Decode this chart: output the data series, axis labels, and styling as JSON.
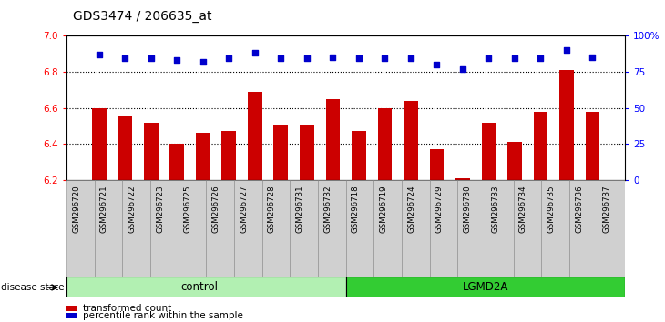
{
  "title": "GDS3474 / 206635_at",
  "samples": [
    "GSM296720",
    "GSM296721",
    "GSM296722",
    "GSM296723",
    "GSM296725",
    "GSM296726",
    "GSM296727",
    "GSM296728",
    "GSM296731",
    "GSM296732",
    "GSM296718",
    "GSM296719",
    "GSM296724",
    "GSM296729",
    "GSM296730",
    "GSM296733",
    "GSM296734",
    "GSM296735",
    "GSM296736",
    "GSM296737"
  ],
  "bar_values": [
    6.6,
    6.56,
    6.52,
    6.4,
    6.46,
    6.47,
    6.69,
    6.51,
    6.51,
    6.65,
    6.47,
    6.6,
    6.64,
    6.37,
    6.21,
    6.52,
    6.41,
    6.58,
    6.81,
    6.58
  ],
  "percentile_values": [
    87,
    84,
    84,
    83,
    82,
    84,
    88,
    84,
    84,
    85,
    84,
    84,
    84,
    80,
    77,
    84,
    84,
    84,
    90,
    85
  ],
  "n_control": 10,
  "n_lgmd": 10,
  "bar_color": "#cc0000",
  "percentile_color": "#0000cc",
  "ylim_left": [
    6.2,
    7.0
  ],
  "ylim_right": [
    0,
    100
  ],
  "yticks_left": [
    6.2,
    6.4,
    6.6,
    6.8,
    7.0
  ],
  "yticks_right": [
    0,
    25,
    50,
    75,
    100
  ],
  "ytick_labels_right": [
    "0",
    "25",
    "50",
    "75",
    "100%"
  ],
  "grid_values": [
    6.4,
    6.6,
    6.8
  ],
  "control_color": "#b2f0b2",
  "lgmd_color": "#33cc33",
  "control_label": "control",
  "lgmd_label": "LGMD2A",
  "disease_label": "disease state",
  "legend_bar_label": "transformed count",
  "legend_pct_label": "percentile rank within the sample",
  "bar_width": 0.55
}
